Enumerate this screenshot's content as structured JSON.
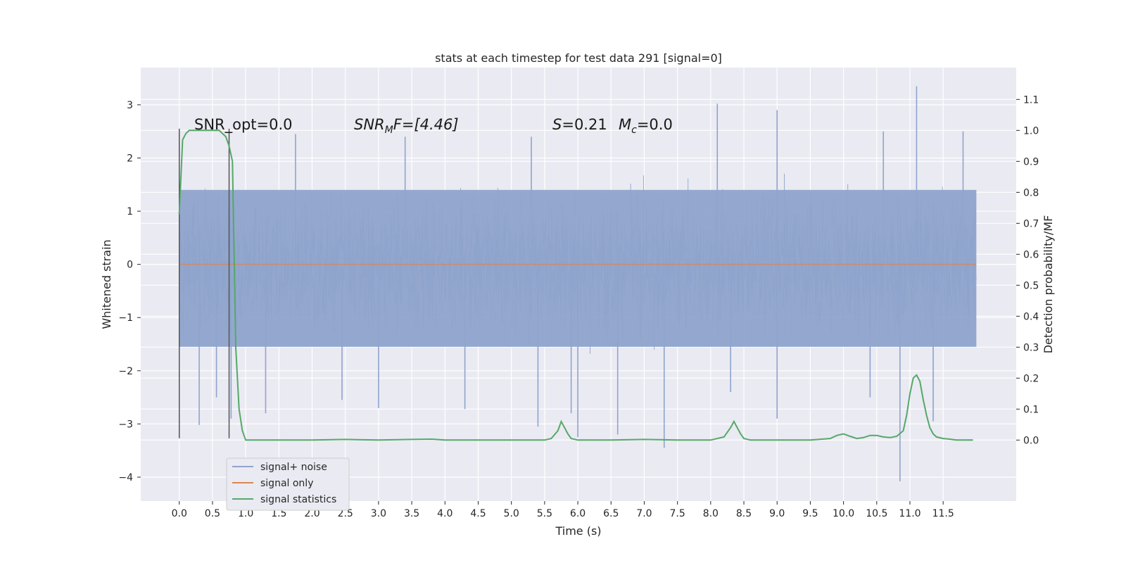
{
  "chart_data": {
    "type": "line",
    "title": "stats at each timestep for test data 291 [signal=0]",
    "xlabel": "Time (s)",
    "ylabel": "Whitened strain",
    "y2label": "Detection probability/MF",
    "xlim": [
      -0.58,
      12.6
    ],
    "ylim": [
      -4.45,
      3.7
    ],
    "y2lim": [
      -0.197,
      1.203
    ],
    "x_ticks": [
      0.0,
      0.5,
      1.0,
      1.5,
      2.0,
      2.5,
      3.0,
      3.5,
      4.0,
      4.5,
      5.0,
      5.5,
      6.0,
      6.5,
      7.0,
      7.5,
      8.0,
      8.5,
      9.0,
      9.5,
      10.0,
      10.5,
      11.0,
      11.5
    ],
    "x_tick_labels": [
      "0.0",
      "0.5",
      "1.0",
      "1.5",
      "2.0",
      "2.5",
      "3.0",
      "3.5",
      "4.0",
      "4.5",
      "5.0",
      "5.5",
      "6.0",
      "6.5",
      "7.0",
      "7.5",
      "8.0",
      "8.5",
      "9.0",
      "9.5",
      "10.0",
      "10.5",
      "11.0",
      "11.5"
    ],
    "y_ticks": [
      -4,
      -3,
      -2,
      -1,
      0,
      1,
      2,
      3
    ],
    "y_tick_labels": [
      "−4",
      "−3",
      "−2",
      "−1",
      "0",
      "1",
      "2",
      "3"
    ],
    "y2_ticks": [
      0.0,
      0.1,
      0.2,
      0.3,
      0.4,
      0.5,
      0.6,
      0.7,
      0.8,
      0.9,
      1.0,
      1.1
    ],
    "y2_tick_labels": [
      "0.0",
      "0.1",
      "0.2",
      "0.3",
      "0.4",
      "0.5",
      "0.6",
      "0.7",
      "0.8",
      "0.9",
      "1.0",
      "1.1"
    ],
    "grid": true,
    "legend_position": "lower-left",
    "noise": {
      "name": "signal+ noise",
      "color": "#8fa4cc",
      "x_range": [
        0.0,
        12.0
      ],
      "envelope_core": [
        -1.55,
        1.4
      ],
      "spikes": [
        {
          "x": 0.3,
          "y": -3.02
        },
        {
          "x": 0.56,
          "y": -2.5
        },
        {
          "x": 0.78,
          "y": -2.9
        },
        {
          "x": 1.3,
          "y": -2.8
        },
        {
          "x": 1.75,
          "y": 2.45
        },
        {
          "x": 2.45,
          "y": -2.55
        },
        {
          "x": 3.0,
          "y": -2.7
        },
        {
          "x": 3.4,
          "y": 2.4
        },
        {
          "x": 4.3,
          "y": -2.72
        },
        {
          "x": 5.3,
          "y": 2.4
        },
        {
          "x": 5.4,
          "y": -3.05
        },
        {
          "x": 5.9,
          "y": -2.8
        },
        {
          "x": 6.0,
          "y": -3.25
        },
        {
          "x": 6.6,
          "y": -3.2
        },
        {
          "x": 7.3,
          "y": -3.45
        },
        {
          "x": 8.1,
          "y": 3.02
        },
        {
          "x": 8.3,
          "y": -2.4
        },
        {
          "x": 9.0,
          "y": 2.9
        },
        {
          "x": 9.0,
          "y": -2.9
        },
        {
          "x": 10.4,
          "y": -2.5
        },
        {
          "x": 10.6,
          "y": 2.5
        },
        {
          "x": 10.85,
          "y": -4.08
        },
        {
          "x": 11.1,
          "y": 3.35
        },
        {
          "x": 11.35,
          "y": -2.95
        },
        {
          "x": 11.8,
          "y": 2.5
        }
      ]
    },
    "signal_only": {
      "name": "signal only",
      "color": "#dd8452",
      "x": [
        0.0,
        12.0
      ],
      "y": [
        0.0,
        0.0
      ]
    },
    "stats": {
      "name": "signal statistics",
      "color": "#55a868",
      "x": [
        0.0,
        0.05,
        0.1,
        0.15,
        0.2,
        0.3,
        0.4,
        0.5,
        0.6,
        0.7,
        0.75,
        0.8,
        0.85,
        0.9,
        0.95,
        1.0,
        1.5,
        2.0,
        2.5,
        3.0,
        3.5,
        3.8,
        4.0,
        4.5,
        5.0,
        5.5,
        5.6,
        5.7,
        5.75,
        5.8,
        5.85,
        5.9,
        6.0,
        6.5,
        7.0,
        7.5,
        8.0,
        8.2,
        8.3,
        8.35,
        8.4,
        8.45,
        8.5,
        8.6,
        9.0,
        9.5,
        9.8,
        9.9,
        10.0,
        10.1,
        10.2,
        10.3,
        10.4,
        10.5,
        10.6,
        10.7,
        10.8,
        10.9,
        10.95,
        11.0,
        11.05,
        11.1,
        11.15,
        11.2,
        11.25,
        11.3,
        11.35,
        11.4,
        11.5,
        11.6,
        11.7,
        11.8,
        11.9,
        11.95
      ],
      "y": [
        0.73,
        0.97,
        0.99,
        1.0,
        1.0,
        1.0,
        1.0,
        1.0,
        1.0,
        0.98,
        0.95,
        0.9,
        0.3,
        0.1,
        0.03,
        0.0,
        0.0,
        0.0,
        0.002,
        0.0,
        0.002,
        0.003,
        0.0,
        0.0,
        0.0,
        0.0,
        0.005,
        0.03,
        0.06,
        0.04,
        0.02,
        0.005,
        0.0,
        0.0,
        0.002,
        0.0,
        0.0,
        0.01,
        0.04,
        0.06,
        0.04,
        0.02,
        0.005,
        0.0,
        0.0,
        0.0,
        0.005,
        0.015,
        0.02,
        0.012,
        0.005,
        0.008,
        0.015,
        0.015,
        0.01,
        0.008,
        0.012,
        0.03,
        0.08,
        0.15,
        0.2,
        0.21,
        0.19,
        0.13,
        0.08,
        0.04,
        0.02,
        0.01,
        0.005,
        0.003,
        0.0,
        0.0,
        0.0,
        0.0
      ]
    },
    "vlines": [
      {
        "x": 0.0,
        "y_range": [
          -3.27,
          2.55
        ]
      },
      {
        "x": 0.75,
        "y_range": [
          -3.27,
          2.55
        ]
      }
    ],
    "annotations": {
      "snr_opt": "SNR_opt=0.0",
      "snr_mf_base": "SNR",
      "snr_mf_sub": "M",
      "snr_mf_rest": "F=[4.46]",
      "s_label": "S",
      "s_value": "=0.21",
      "mc_label": "M",
      "mc_sub": "c",
      "mc_value": "=0.0"
    },
    "legend": [
      "signal+ noise",
      "signal only",
      "signal statistics"
    ]
  }
}
